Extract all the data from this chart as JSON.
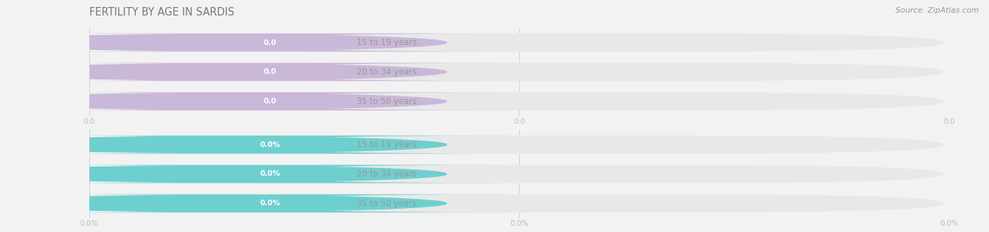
{
  "title": "FERTILITY BY AGE IN SARDIS",
  "source": "Source: ZipAtlas.com",
  "top_section": {
    "categories": [
      "15 to 19 years",
      "20 to 34 years",
      "35 to 50 years"
    ],
    "values": [
      0.0,
      0.0,
      0.0
    ],
    "bar_color": "#c9b8d8",
    "icon_color": "#b8a8cc",
    "value_text_color": "#ffffff",
    "x_tick_labels": [
      "0.0",
      "0.0",
      "0.0"
    ],
    "use_percent": false
  },
  "bottom_section": {
    "categories": [
      "15 to 19 years",
      "20 to 34 years",
      "35 to 50 years"
    ],
    "values": [
      0.0,
      0.0,
      0.0
    ],
    "bar_color": "#6ecfcf",
    "icon_color": "#5bbcbc",
    "value_text_color": "#ffffff",
    "x_tick_labels": [
      "0.0%",
      "0.0%",
      "0.0%"
    ],
    "use_percent": true
  },
  "bg_color": "#f2f2f2",
  "bar_bg_color": "#e8e8e8",
  "bar_bg_shadow": "#d8d8d8",
  "white_label_color": "#ffffff",
  "label_text_color": "#999999",
  "tick_color": "#bbbbbb",
  "grid_color": "#cccccc",
  "fig_width": 14.06,
  "fig_height": 3.3,
  "title_fontsize": 10.5,
  "label_fontsize": 8.5,
  "value_fontsize": 7.5,
  "tick_fontsize": 7.5,
  "source_fontsize": 8
}
